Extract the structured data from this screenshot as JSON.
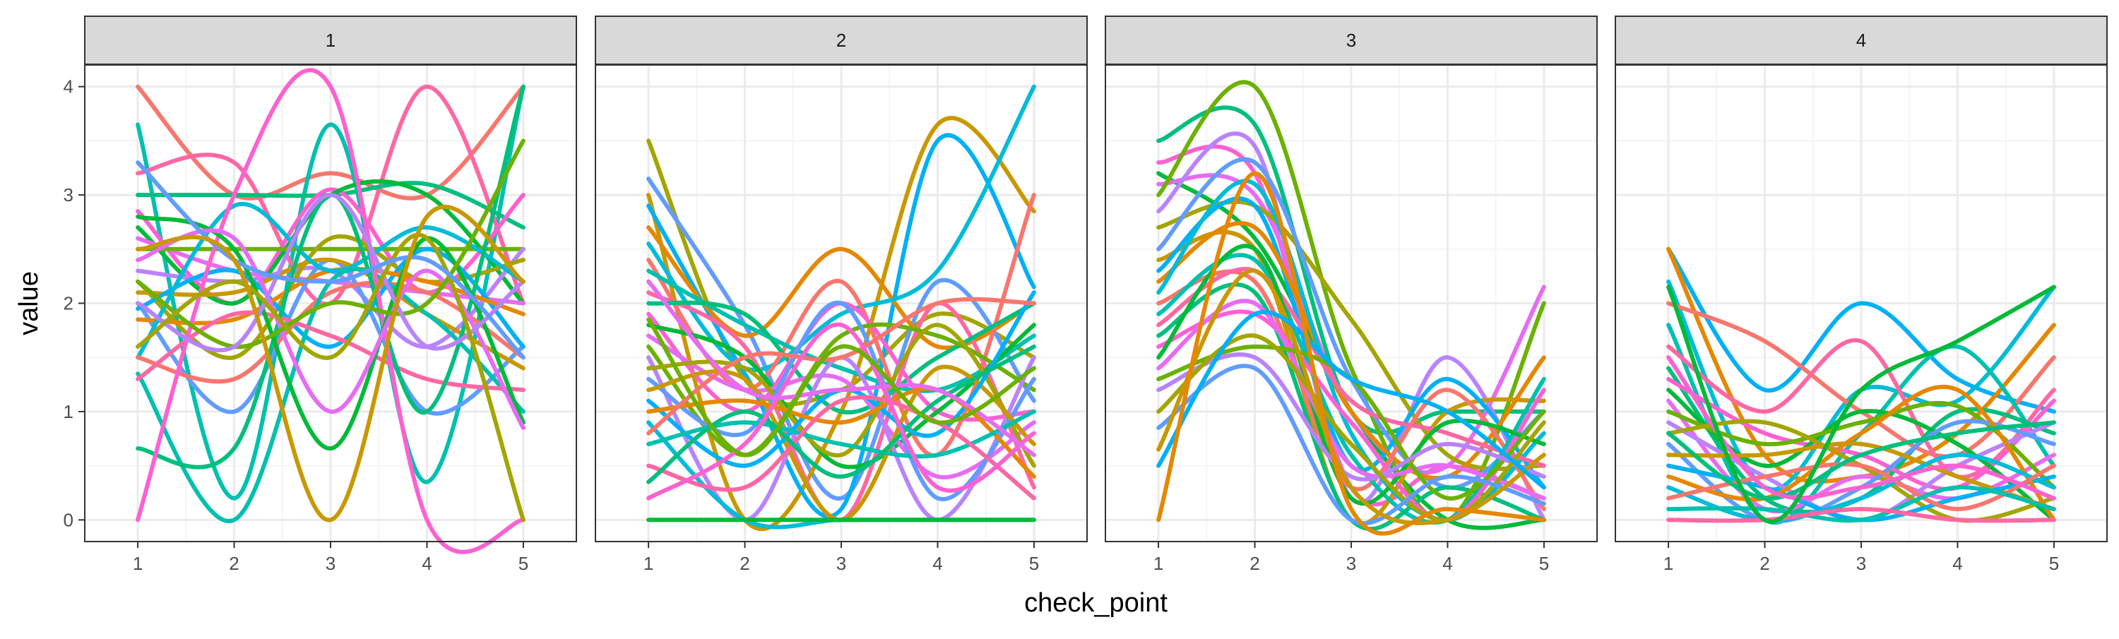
{
  "chart_data": {
    "type": "line",
    "xlabel": "check_point",
    "ylabel": "value",
    "x_ticks": [
      1,
      2,
      3,
      4,
      5
    ],
    "y_ticks": [
      0,
      1,
      2,
      3,
      4
    ],
    "xlim": [
      0.45,
      5.55
    ],
    "ylim": [
      -0.2,
      4.2
    ],
    "grid": true,
    "legend": "none",
    "curve": "smooth spline through points",
    "palette": [
      "#F8766D",
      "#E58700",
      "#C99800",
      "#A3A500",
      "#6BB100",
      "#00BA38",
      "#00BF7D",
      "#00C0AF",
      "#00BCD8",
      "#00B0F6",
      "#619CFF",
      "#B983FF",
      "#E76BF3",
      "#FD61D1",
      "#FF67A4"
    ],
    "panels": [
      {
        "label": "1",
        "series": [
          [
            4,
            3,
            3.2,
            3,
            4
          ],
          [
            3.65,
            0.2,
            3.65,
            0.35,
            4
          ],
          [
            3.2,
            3.3,
            2,
            4,
            2
          ],
          [
            3,
            3,
            3,
            3.1,
            2.7
          ],
          [
            2.85,
            2,
            3.05,
            2.1,
            3
          ],
          [
            2.7,
            2,
            3,
            3,
            2
          ],
          [
            2.6,
            2.3,
            2.2,
            2.1,
            2
          ],
          [
            2.5,
            2.5,
            2.5,
            2.5,
            2.5
          ],
          [
            2.3,
            2.2,
            2.3,
            1.6,
            2.5
          ],
          [
            2.2,
            1.5,
            2.6,
            2.2,
            2.4
          ],
          [
            2,
            1,
            2.4,
            1,
            1.6
          ],
          [
            2.1,
            2.1,
            2.4,
            1.9,
            1.4
          ],
          [
            1.95,
            2.3,
            1.6,
            2.5,
            1.6
          ],
          [
            1.85,
            1.85,
            2.3,
            2.2,
            1.9
          ],
          [
            1.5,
            2.9,
            2.3,
            2.7,
            2.2
          ],
          [
            1.5,
            1.3,
            2.1,
            2.1,
            1.5
          ],
          [
            1.35,
            0,
            2.2,
            1.9,
            1
          ],
          [
            1.3,
            1.9,
            1.7,
            1.3,
            1.2
          ],
          [
            0.66,
            0.66,
            3,
            1,
            4
          ],
          [
            0,
            3,
            4,
            0,
            0
          ],
          [
            2.8,
            2.5,
            0.66,
            2.6,
            0.9
          ],
          [
            2.4,
            2.6,
            1,
            2.3,
            0.85
          ],
          [
            2.2,
            1.6,
            2,
            2,
            3.5
          ],
          [
            2,
            1.6,
            3,
            1.6,
            2.2
          ],
          [
            1.6,
            2.2,
            1.5,
            2.6,
            0
          ],
          [
            3.3,
            2.4,
            2.2,
            2.4,
            1.5
          ],
          [
            2.5,
            2.4,
            0,
            2.8,
            2.2
          ]
        ]
      },
      {
        "label": "2",
        "series": [
          [
            3.5,
            1.3,
            1.2,
            1.9,
            1.5
          ],
          [
            3.15,
            1.8,
            0.2,
            2.2,
            1.1
          ],
          [
            3,
            0,
            1,
            3.65,
            2.85
          ],
          [
            2.9,
            1.35,
            0.1,
            3.5,
            2.15
          ],
          [
            2.7,
            1.7,
            2.5,
            1.6,
            2
          ],
          [
            2.55,
            1.4,
            1.9,
            2.3,
            4
          ],
          [
            2.4,
            1.2,
            2.2,
            0.6,
            3
          ],
          [
            2.3,
            1.8,
            1.4,
            1.2,
            1.7
          ],
          [
            2.1,
            1.6,
            0,
            2,
            0.3
          ],
          [
            2,
            1.9,
            1,
            1.5,
            2
          ],
          [
            1.9,
            1,
            2,
            1,
            1
          ],
          [
            1.8,
            1.5,
            0.5,
            1,
            1.8
          ],
          [
            1.7,
            1.2,
            1.3,
            0.4,
            0.9
          ],
          [
            1.6,
            0.6,
            1.7,
            1.7,
            1.2
          ],
          [
            1.5,
            0,
            1.5,
            0,
            1.5
          ],
          [
            1.4,
            1.4,
            0.6,
            1.8,
            0.5
          ],
          [
            1.3,
            0.8,
            2,
            0.2,
            1.3
          ],
          [
            1.2,
            1.3,
            0,
            1.4,
            0.7
          ],
          [
            1.1,
            0.5,
            1.2,
            0.8,
            2.1
          ],
          [
            1,
            1.1,
            0.9,
            1.2,
            0.4
          ],
          [
            0.9,
            0,
            0,
            0,
            0
          ],
          [
            0.8,
            1.5,
            1.5,
            2,
            2
          ],
          [
            0.7,
            0.9,
            0.7,
            0.6,
            1
          ],
          [
            0.5,
            0.3,
            1.1,
            0.9,
            0.2
          ],
          [
            0.35,
            1,
            0.4,
            1.1,
            1.6
          ],
          [
            0.2,
            0.7,
            1.8,
            0.3,
            0.8
          ],
          [
            0,
            0,
            0,
            0,
            0
          ],
          [
            2.2,
            1.2,
            1.2,
            1.2,
            0.6
          ],
          [
            1.85,
            0.6,
            1.6,
            0.9,
            1.4
          ]
        ]
      },
      {
        "label": "3",
        "series": [
          [
            3.5,
            3.65,
            1,
            1,
            1
          ],
          [
            3.3,
            3.2,
            0.3,
            0.5,
            0.2
          ],
          [
            3.2,
            2.6,
            1,
            0,
            0
          ],
          [
            3.1,
            3,
            1,
            0.5,
            2.15
          ],
          [
            3,
            4,
            1.4,
            0,
            2
          ],
          [
            2.85,
            3.45,
            0.2,
            1.5,
            0
          ],
          [
            2.7,
            2.9,
            1.85,
            0.6,
            0.5
          ],
          [
            2.5,
            3.3,
            1.3,
            0.3,
            1
          ],
          [
            2.4,
            2.5,
            0,
            1,
            1.1
          ],
          [
            2.3,
            2.9,
            0.5,
            1.3,
            0.3
          ],
          [
            2.2,
            2.7,
            1,
            0.4,
            1.5
          ],
          [
            2.1,
            3.1,
            0.8,
            0,
            0.8
          ],
          [
            2,
            2.2,
            0.3,
            1.2,
            0.1
          ],
          [
            1.9,
            2.4,
            0.6,
            0,
            1.3
          ],
          [
            1.8,
            2.3,
            1.1,
            0.8,
            0.5
          ],
          [
            1.7,
            2.1,
            0,
            0.3,
            0
          ],
          [
            1.6,
            1.9,
            0.9,
            0,
            1.2
          ],
          [
            1.5,
            2.5,
            0.2,
            0.9,
            0.7
          ],
          [
            1.4,
            2,
            0.5,
            0.5,
            0.2
          ],
          [
            1.3,
            1.6,
            1.3,
            0.2,
            1
          ],
          [
            1.2,
            1.5,
            0.4,
            0.7,
            0.4
          ],
          [
            1,
            1.7,
            0.7,
            0,
            0.9
          ],
          [
            0.85,
            1.4,
            0,
            0.4,
            0.15
          ],
          [
            0.65,
            2.3,
            0.3,
            0,
            0.6
          ],
          [
            0.5,
            1.9,
            1.3,
            1,
            0.3
          ],
          [
            0,
            3.2,
            0.1,
            0.1,
            0
          ]
        ]
      },
      {
        "label": "4",
        "series": [
          [
            2.5,
            1.2,
            2,
            1.3,
            1
          ],
          [
            2.5,
            0.6,
            0.4,
            0.8,
            1.8
          ],
          [
            2.2,
            0.3,
            1.2,
            1.1,
            2.15
          ],
          [
            2,
            1.65,
            1,
            0.6,
            1.5
          ],
          [
            1.8,
            0,
            0.8,
            1.6,
            0.5
          ],
          [
            1.6,
            1,
            1.65,
            0.4,
            1.2
          ],
          [
            1.4,
            0.2,
            0.2,
            1,
            0.8
          ],
          [
            1.3,
            0.8,
            0.6,
            0.3,
            1.1
          ],
          [
            1.2,
            0.5,
            1,
            0.7,
            0
          ],
          [
            1.1,
            0.1,
            0.4,
            0.2,
            0.6
          ],
          [
            1,
            0.7,
            0.9,
            1.05,
            0.3
          ],
          [
            0.9,
            0.4,
            0,
            0.5,
            0.9
          ],
          [
            0.8,
            0.9,
            0.5,
            0,
            0.2
          ],
          [
            0.7,
            0,
            0.3,
            0.9,
            0.7
          ],
          [
            0.6,
            0.6,
            0.7,
            0.4,
            0.1
          ],
          [
            0.5,
            0.3,
            0,
            0.2,
            0.4
          ],
          [
            0.4,
            0.2,
            0.8,
            1.2,
            0
          ],
          [
            0.3,
            0,
            0.2,
            0.6,
            0.3
          ],
          [
            0.2,
            0.4,
            0.5,
            0.1,
            0.5
          ],
          [
            0.1,
            0.1,
            0,
            0.3,
            0.1
          ],
          [
            0,
            0,
            0.1,
            0,
            0
          ],
          [
            0.8,
            0.2,
            0.6,
            0.8,
            0.9
          ],
          [
            1.5,
            0.3,
            0.3,
            0.5,
            0.2
          ],
          [
            2.15,
            0,
            1.2,
            1.65,
            2.15
          ]
        ]
      }
    ]
  }
}
